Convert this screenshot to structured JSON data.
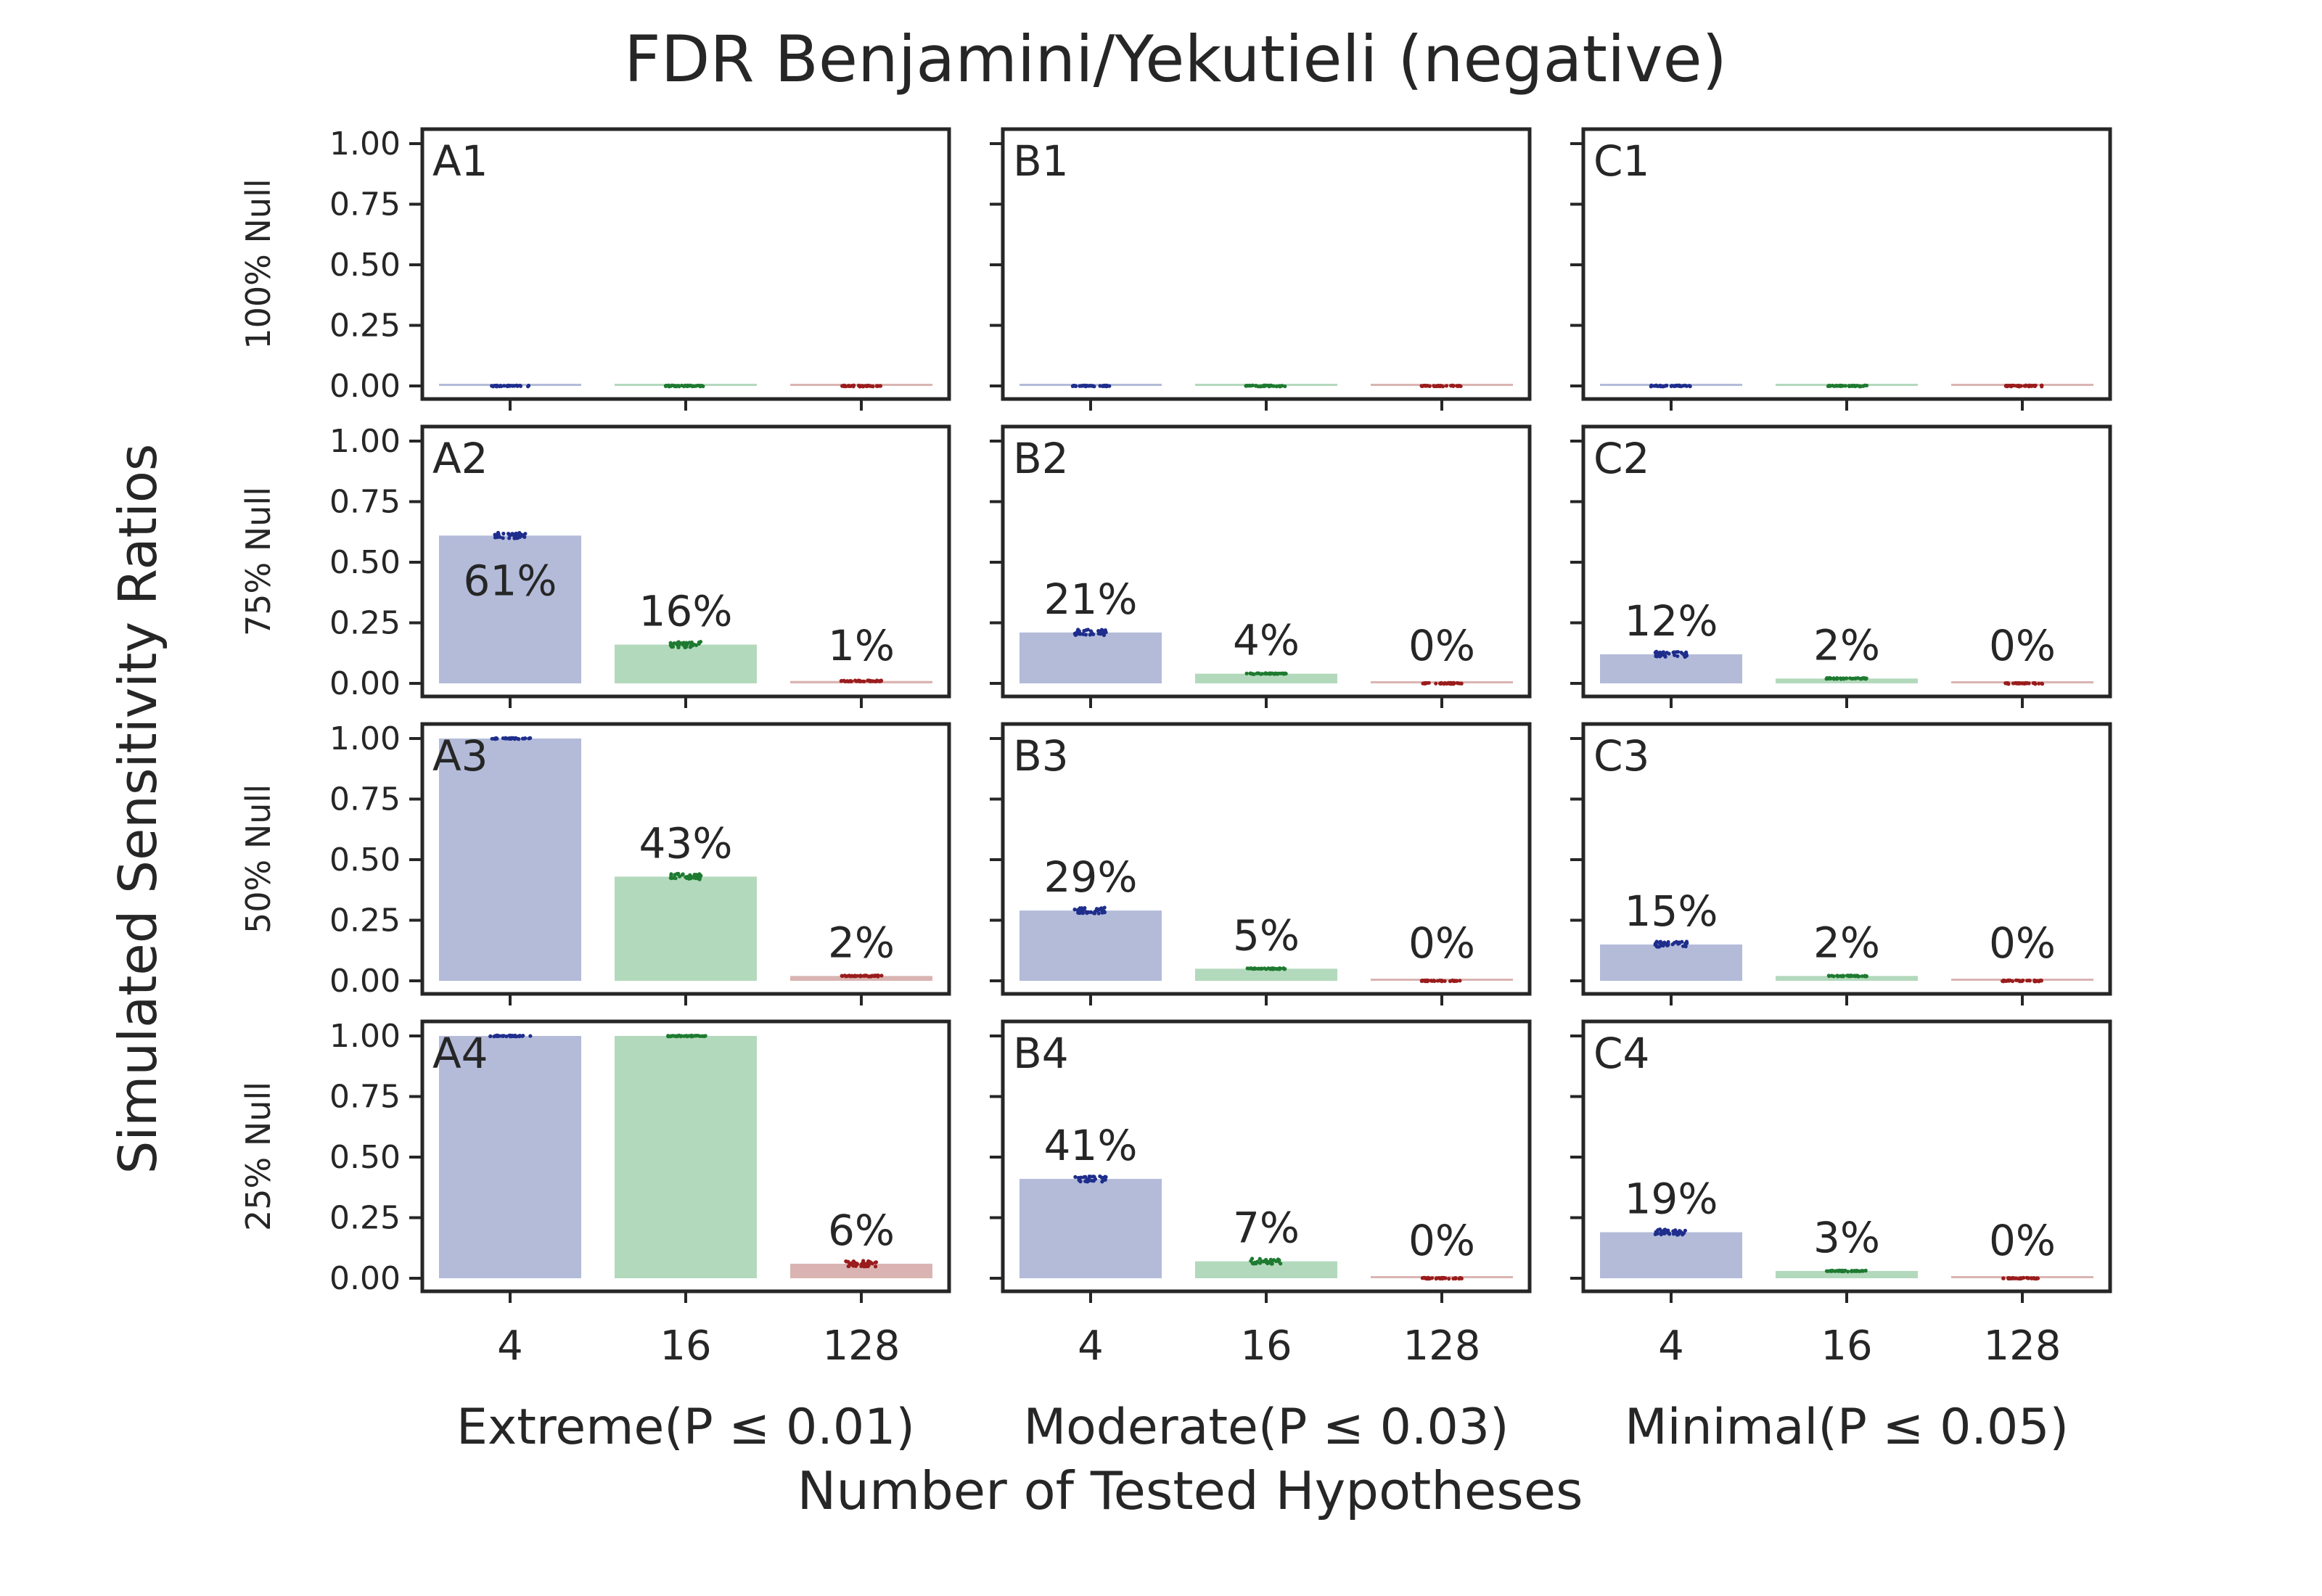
{
  "chart_data": {
    "type": "bar",
    "title": "FDR Benjamini/Yekutieli (negative)",
    "ylabel": "Simulated Sensitivity Ratios",
    "xlabel": "Number of Tested Hypotheses",
    "categories": [
      "4",
      "16",
      "128"
    ],
    "ylim": [
      0,
      1
    ],
    "yticks": [
      "0.00",
      "0.25",
      "0.50",
      "0.75",
      "1.00"
    ],
    "grid": false,
    "series_colors": [
      "#b3bbd9",
      "#b3d9bc",
      "#dab4b2"
    ],
    "point_colors": [
      "#1f2e8c",
      "#1e7a30",
      "#9a1c1c"
    ],
    "columns": [
      {
        "label": "Extreme(P ≤ 0.01)"
      },
      {
        "label": "Moderate(P ≤ 0.03)"
      },
      {
        "label": "Minimal(P ≤ 0.05)"
      }
    ],
    "rows": [
      {
        "label": "100% Null"
      },
      {
        "label": "75% Null"
      },
      {
        "label": "50% Null"
      },
      {
        "label": "25% Null"
      }
    ],
    "panels": [
      {
        "id": "A1",
        "row": 0,
        "col": 0,
        "values": [
          0,
          0,
          0
        ],
        "labels": [
          "",
          "",
          ""
        ]
      },
      {
        "id": "B1",
        "row": 0,
        "col": 1,
        "values": [
          0,
          0,
          0
        ],
        "labels": [
          "",
          "",
          ""
        ]
      },
      {
        "id": "C1",
        "row": 0,
        "col": 2,
        "values": [
          0,
          0,
          0
        ],
        "labels": [
          "",
          "",
          ""
        ]
      },
      {
        "id": "A2",
        "row": 1,
        "col": 0,
        "values": [
          0.61,
          0.16,
          0.01
        ],
        "labels": [
          "61%",
          "16%",
          "1%"
        ]
      },
      {
        "id": "B2",
        "row": 1,
        "col": 1,
        "values": [
          0.21,
          0.04,
          0.0
        ],
        "labels": [
          "21%",
          "4%",
          "0%"
        ]
      },
      {
        "id": "C2",
        "row": 1,
        "col": 2,
        "values": [
          0.12,
          0.02,
          0.0
        ],
        "labels": [
          "12%",
          "2%",
          "0%"
        ]
      },
      {
        "id": "A3",
        "row": 2,
        "col": 0,
        "values": [
          1.0,
          0.43,
          0.02
        ],
        "labels": [
          "",
          "43%",
          "2%"
        ]
      },
      {
        "id": "B3",
        "row": 2,
        "col": 1,
        "values": [
          0.29,
          0.05,
          0.0
        ],
        "labels": [
          "29%",
          "5%",
          "0%"
        ]
      },
      {
        "id": "C3",
        "row": 2,
        "col": 2,
        "values": [
          0.15,
          0.02,
          0.0
        ],
        "labels": [
          "15%",
          "2%",
          "0%"
        ]
      },
      {
        "id": "A4",
        "row": 3,
        "col": 0,
        "values": [
          1.0,
          1.0,
          0.06
        ],
        "labels": [
          "",
          "",
          "6%"
        ]
      },
      {
        "id": "B4",
        "row": 3,
        "col": 1,
        "values": [
          0.41,
          0.07,
          0.0
        ],
        "labels": [
          "41%",
          "7%",
          "0%"
        ]
      },
      {
        "id": "C4",
        "row": 3,
        "col": 2,
        "values": [
          0.19,
          0.03,
          0.0
        ],
        "labels": [
          "19%",
          "3%",
          "0%"
        ]
      }
    ]
  }
}
